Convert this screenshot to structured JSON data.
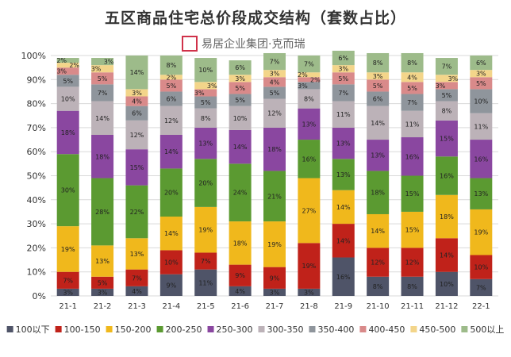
{
  "chart_data": {
    "type": "bar",
    "stacked": true,
    "title": "五区商品住宅总价段成交结构（套数占比）",
    "xlabel": "",
    "ylabel": "",
    "ylim": [
      0,
      100
    ],
    "yticks": [
      "0%",
      "10%",
      "20%",
      "30%",
      "40%",
      "50%",
      "60%",
      "70%",
      "80%",
      "90%",
      "100%"
    ],
    "grid": true,
    "legend_position": "bottom",
    "categories": [
      "21-1",
      "21-2",
      "21-3",
      "21-4",
      "21-5",
      "21-6",
      "21-7",
      "21-8",
      "21-9",
      "21-10",
      "21-11",
      "21-12",
      "22-1"
    ],
    "series": [
      {
        "name": "100以下",
        "color": "#4f5468",
        "values": [
          3,
          3,
          4,
          9,
          11,
          4,
          3,
          3,
          16,
          8,
          8,
          10,
          7
        ]
      },
      {
        "name": "100-150",
        "color": "#c0221a",
        "values": [
          7,
          5,
          7,
          10,
          7,
          9,
          9,
          19,
          14,
          12,
          12,
          14,
          10
        ]
      },
      {
        "name": "150-200",
        "color": "#f0b81c",
        "values": [
          19,
          13,
          13,
          14,
          19,
          18,
          19,
          27,
          14,
          14,
          15,
          18,
          19
        ]
      },
      {
        "name": "200-250",
        "color": "#5b9a31",
        "values": [
          30,
          28,
          22,
          20,
          20,
          24,
          21,
          16,
          13,
          18,
          15,
          16,
          13
        ]
      },
      {
        "name": "250-300",
        "color": "#8a47a0",
        "values": [
          18,
          18,
          15,
          14,
          13,
          14,
          18,
          13,
          13,
          13,
          16,
          15,
          16
        ]
      },
      {
        "name": "300-350",
        "color": "#bcb2b8",
        "values": [
          10,
          14,
          12,
          12,
          8,
          10,
          12,
          8,
          11,
          14,
          11,
          8,
          11
        ]
      },
      {
        "name": "350-400",
        "color": "#8f959c",
        "values": [
          5,
          7,
          6,
          6,
          5,
          5,
          5,
          3,
          7,
          6,
          7,
          5,
          10
        ]
      },
      {
        "name": "400-450",
        "color": "#d98a8a",
        "values": [
          3,
          5,
          4,
          5,
          3,
          5,
          4,
          2,
          5,
          5,
          5,
          3,
          5
        ]
      },
      {
        "name": "450-500",
        "color": "#f3d58a",
        "values": [
          2,
          3,
          3,
          2,
          3,
          3,
          3,
          2,
          3,
          3,
          4,
          3,
          3
        ]
      },
      {
        "name": "500以上",
        "color": "#9dbb8a",
        "values": [
          2,
          3,
          14,
          8,
          10,
          6,
          7,
          7,
          6,
          8,
          8,
          7,
          6
        ]
      }
    ],
    "watermark": "易居企业集团·克而瑞"
  }
}
